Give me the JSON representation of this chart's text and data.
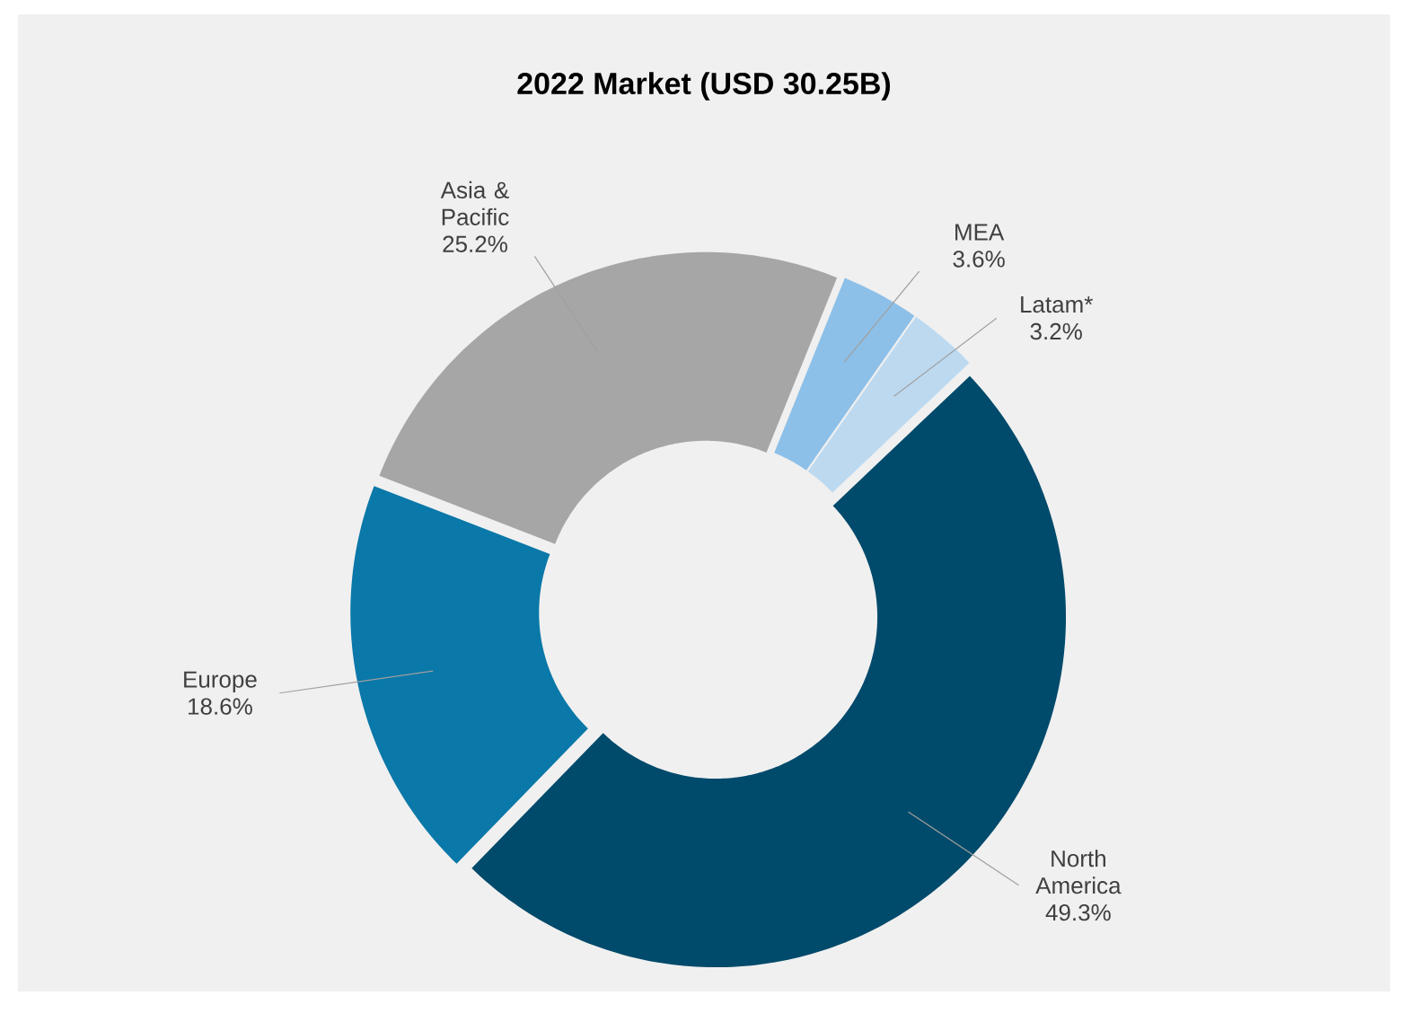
{
  "chart_data": {
    "type": "donut",
    "title": "2022 Market (USD 30.25B)",
    "categories": [
      "MEA",
      "Latam*",
      "North America",
      "Europe",
      "Asia & Pacific"
    ],
    "values": [
      3.6,
      3.2,
      49.3,
      18.6,
      25.2
    ],
    "value_labels": [
      "3.6%",
      "3.2%",
      "49.3%",
      "18.6%",
      "25.2%"
    ],
    "colors": [
      "#8dc0e8",
      "#bcd9f0",
      "#004a6b",
      "#0a78a8",
      "#a6a6a6"
    ]
  }
}
